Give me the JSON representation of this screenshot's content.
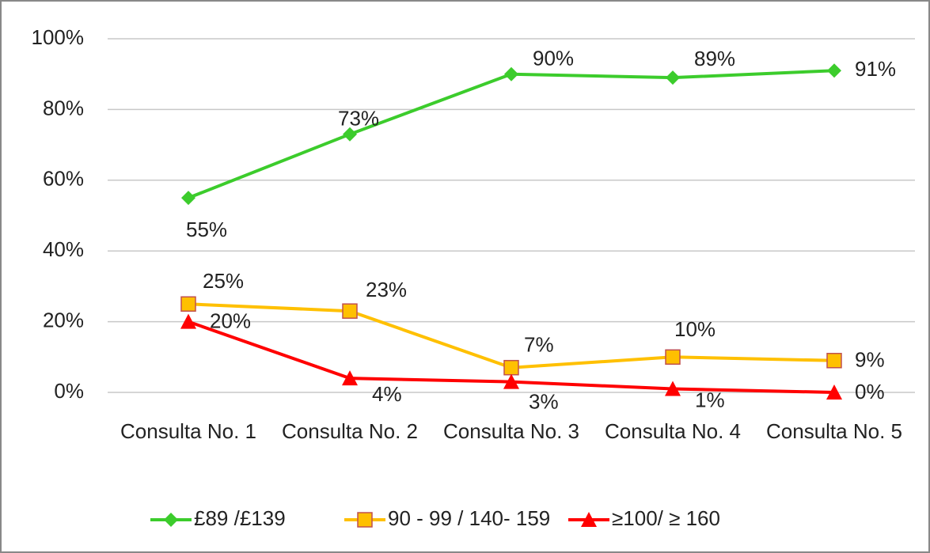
{
  "chart_data": {
    "type": "line",
    "categories": [
      "Consulta No. 1",
      "Consulta No. 2",
      "Consulta No. 3",
      "Consulta No. 4",
      "Consulta No. 5"
    ],
    "series": [
      {
        "name": "£89 /£139",
        "color": "#3ccc2c",
        "marker": "diamond",
        "values": [
          55,
          73,
          90,
          89,
          91
        ],
        "value_labels": [
          "55%",
          "73%",
          "90%",
          "89%",
          "91%"
        ]
      },
      {
        "name": "90 - 99 / 140- 159",
        "color": "#ffc000",
        "marker": "square",
        "values": [
          25,
          23,
          7,
          10,
          9
        ],
        "value_labels": [
          "25%",
          "23%",
          "7%",
          "10%",
          "9%"
        ]
      },
      {
        "name": "≥100/ ≥ 160",
        "color": "#ff0000",
        "marker": "triangle",
        "values": [
          20,
          4,
          3,
          1,
          0
        ],
        "value_labels": [
          "20%",
          "4%",
          "3%",
          "1%",
          "0%"
        ]
      }
    ],
    "ylim": [
      0,
      100
    ],
    "yticks": [
      {
        "value": 0,
        "label": "0%"
      },
      {
        "value": 20,
        "label": "20%"
      },
      {
        "value": 40,
        "label": "40%"
      },
      {
        "value": 60,
        "label": "60%"
      },
      {
        "value": 80,
        "label": "80%"
      },
      {
        "value": 100,
        "label": "100%"
      }
    ],
    "grid": true,
    "legend": "bottom"
  }
}
